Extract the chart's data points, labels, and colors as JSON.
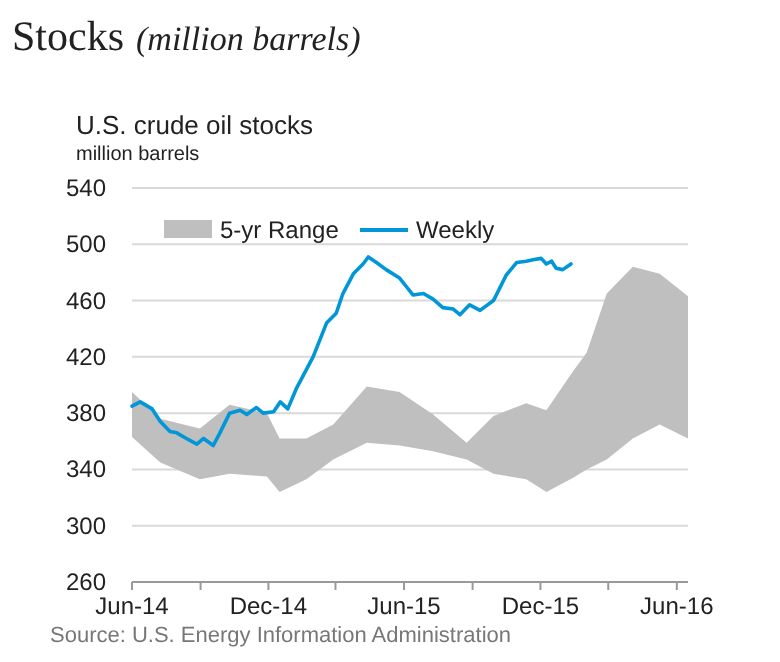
{
  "chart_data": {
    "type": "line",
    "title": "Stocks",
    "subtitle": "(million barrels)",
    "ylabel": "million barrels",
    "annotations": [
      "U.S. crude oil stocks",
      "Source: U.S. Energy Information Administration"
    ],
    "xlim": [
      "2014-06-01",
      "2016-06-16"
    ],
    "xticks": [
      {
        "value": "2014-06-01",
        "label": "Jun-14"
      },
      {
        "value": "2014-09-01",
        "label": null
      },
      {
        "value": "2014-12-01",
        "label": "Dec-14"
      },
      {
        "value": "2015-03-01",
        "label": null
      },
      {
        "value": "2015-06-01",
        "label": "Jun-15"
      },
      {
        "value": "2015-09-01",
        "label": null
      },
      {
        "value": "2015-12-01",
        "label": "Dec-15"
      },
      {
        "value": "2016-03-01",
        "label": null
      },
      {
        "value": "2016-06-01",
        "label": "Jun-16"
      }
    ],
    "ylim": [
      260,
      540
    ],
    "yticks": [
      260,
      300,
      340,
      380,
      420,
      460,
      500,
      540
    ],
    "grid": "y",
    "legend": "top left",
    "series": [
      {
        "name": "5-yr Range",
        "color": "#bfbfbf",
        "x": [
          "2014-06-01",
          "2014-07-09",
          "2014-08-31",
          "2014-10-10",
          "2014-11-29",
          "2014-12-16",
          "2015-01-21",
          "2015-02-26",
          "2015-04-12",
          "2015-05-26",
          "2015-07-10",
          "2015-08-24",
          "2015-09-29",
          "2015-11-12",
          "2015-12-09",
          "2016-01-14",
          "2016-02-01",
          "2016-02-28",
          "2016-04-03",
          "2016-05-09",
          "2016-06-16"
        ],
        "lower": [
          363,
          345,
          333,
          337,
          335,
          324,
          333,
          347,
          359,
          357,
          353,
          347,
          337,
          333,
          324,
          334,
          340,
          347,
          362,
          372,
          362
        ],
        "upper": [
          395,
          376,
          369,
          386,
          380,
          362,
          362,
          372,
          399,
          395,
          379,
          359,
          378,
          387,
          382,
          410,
          423,
          465,
          484,
          479,
          463
        ],
        "values": [
          null,
          null,
          null,
          null,
          null,
          null,
          null,
          null,
          null,
          null,
          null,
          null,
          null,
          null,
          null,
          null,
          null,
          null,
          null,
          null,
          null
        ]
      },
      {
        "name": "Weekly",
        "color": "#0096d7",
        "x": [
          "2014-06-01",
          "2014-06-12",
          "2014-06-28",
          "2014-07-09",
          "2014-07-22",
          "2014-07-31",
          "2014-08-13",
          "2014-08-27",
          "2014-09-05",
          "2014-09-18",
          "2014-09-27",
          "2014-10-10",
          "2014-10-24",
          "2014-11-02",
          "2014-11-15",
          "2014-11-24",
          "2014-12-08",
          "2014-12-17",
          "2014-12-27",
          "2015-01-08",
          "2015-01-30",
          "2015-02-17",
          "2015-03-02",
          "2015-03-11",
          "2015-03-25",
          "2015-04-07",
          "2015-04-14",
          "2015-04-25",
          "2015-05-08",
          "2015-05-26",
          "2015-06-04",
          "2015-06-13",
          "2015-06-27",
          "2015-07-10",
          "2015-07-23",
          "2015-08-06",
          "2015-08-15",
          "2015-08-28",
          "2015-09-11",
          "2015-09-29",
          "2015-10-16",
          "2015-10-30",
          "2015-11-12",
          "2015-11-21",
          "2015-12-02",
          "2015-12-09",
          "2015-12-16",
          "2015-12-22",
          "2015-12-31",
          "2016-01-11"
        ],
        "values": [
          385,
          388,
          383,
          374,
          367,
          366,
          362,
          358,
          362,
          357,
          366,
          380,
          382,
          379,
          384,
          380,
          381,
          388,
          383,
          398,
          420,
          444,
          451,
          465,
          479,
          486,
          491,
          487,
          482,
          476,
          470,
          464,
          465,
          461,
          455,
          454,
          450,
          457,
          453,
          460,
          478,
          487,
          488,
          489,
          490,
          486,
          488,
          483,
          482,
          486
        ]
      }
    ]
  }
}
